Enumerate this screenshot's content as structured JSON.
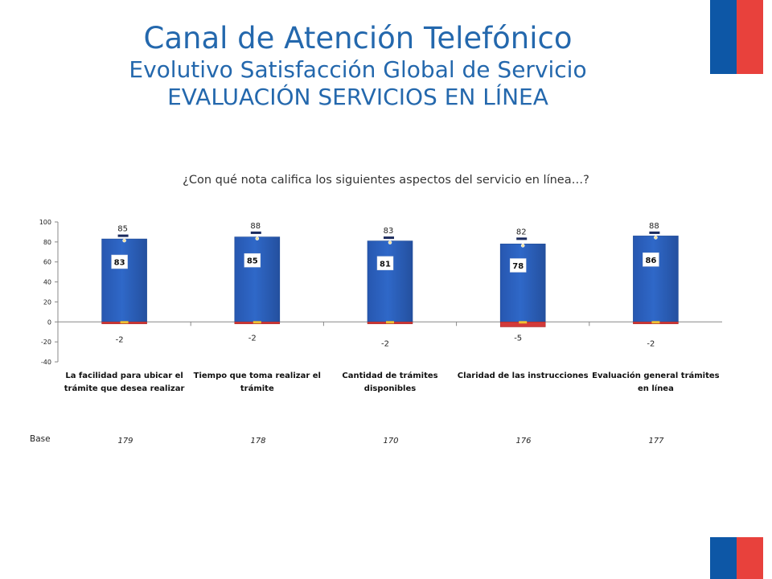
{
  "title": {
    "main": "Canal de Atención Telefónico",
    "sub1": "Evolutivo Satisfacción Global de Servicio",
    "sub2": "EVALUACIÓN SERVICIOS EN LÍNEA"
  },
  "question": "¿Con qué nota califica los siguientes aspectos del servicio en línea…?",
  "colors": {
    "flag_blue": "#0d57a6",
    "flag_red": "#e8413c",
    "bar": "#2f68c8",
    "negative": "#d23a3a",
    "marker": "#1b2b5e"
  },
  "base": {
    "label": "Base",
    "values": [
      "179",
      "178",
      "170",
      "176",
      "177"
    ]
  },
  "chart_data": {
    "type": "bar",
    "categories": [
      [
        "La facilidad para ubicar el",
        "trámite que desea realizar"
      ],
      [
        "Tiempo que toma realizar el",
        "trámite"
      ],
      [
        "Cantidad de trámites",
        "disponibles"
      ],
      [
        "Claridad de las instrucciones"
      ],
      [
        "Evaluación general trámites",
        "en línea"
      ]
    ],
    "series": [
      {
        "values": [
          83,
          85,
          81,
          78,
          86
        ]
      },
      {
        "values": [
          -2,
          -2,
          -2,
          -5,
          -2
        ]
      },
      {
        "values": [
          85,
          88,
          83,
          82,
          88
        ]
      }
    ],
    "ylim": [
      -40,
      100
    ],
    "yticks": [
      -40,
      -20,
      0,
      20,
      40,
      60,
      80,
      100
    ],
    "grid": false
  }
}
